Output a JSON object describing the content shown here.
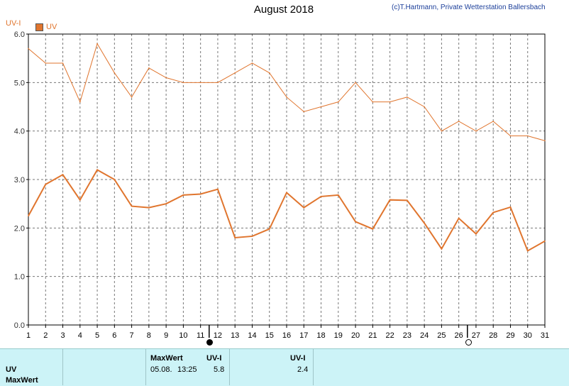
{
  "header": {
    "title": "August 2018",
    "copyright": "(c)T.Hartmann, Private Wetterstation Ballersbach",
    "y_unit_label": "UV-I",
    "legend_label": "UV"
  },
  "chart_data": {
    "type": "line",
    "title": "August 2018",
    "ylabel": "UV-I",
    "ylim": [
      0,
      6
    ],
    "yticks": [
      "0.0",
      "1.0",
      "2.0",
      "3.0",
      "4.0",
      "5.0",
      "6.0"
    ],
    "x": [
      1,
      2,
      3,
      4,
      5,
      6,
      7,
      8,
      9,
      10,
      11,
      12,
      13,
      14,
      15,
      16,
      17,
      18,
      19,
      20,
      21,
      22,
      23,
      24,
      25,
      26,
      27,
      28,
      29,
      30,
      31
    ],
    "grid": true,
    "series": [
      {
        "name": "UV",
        "color": "#e0752e",
        "values": [
          5.7,
          5.4,
          5.4,
          4.6,
          5.8,
          5.2,
          4.7,
          5.3,
          5.1,
          5.0,
          5.0,
          5.0,
          5.2,
          5.4,
          5.2,
          4.7,
          4.4,
          4.5,
          4.6,
          5.0,
          4.6,
          4.6,
          4.7,
          4.5,
          4.0,
          4.2,
          4.0,
          4.2,
          3.9,
          3.9,
          3.8
        ]
      },
      {
        "color": "#e0752e",
        "values": [
          2.25,
          2.9,
          3.1,
          2.58,
          3.2,
          3.0,
          2.45,
          2.42,
          2.5,
          2.68,
          2.7,
          2.8,
          1.8,
          1.83,
          1.98,
          2.73,
          2.42,
          2.65,
          2.68,
          2.13,
          1.98,
          2.58,
          2.57,
          2.1,
          1.57,
          2.2,
          1.88,
          2.32,
          2.43,
          1.53,
          1.73
        ]
      }
    ],
    "markers": [
      {
        "name": "full-moon",
        "x": 11.5
      },
      {
        "name": "new-moon",
        "x": 26.5
      }
    ]
  },
  "panel": {
    "row1_label": "UV",
    "row2_label": "MaxWert",
    "maxwert_header": "MaxWert",
    "maxwert_date": "05.08.",
    "maxwert_time": "13:25",
    "unit_header_1": "UV-I",
    "max_value": "5.8",
    "unit_header_2": "UV-I",
    "second_value": "2.4"
  }
}
